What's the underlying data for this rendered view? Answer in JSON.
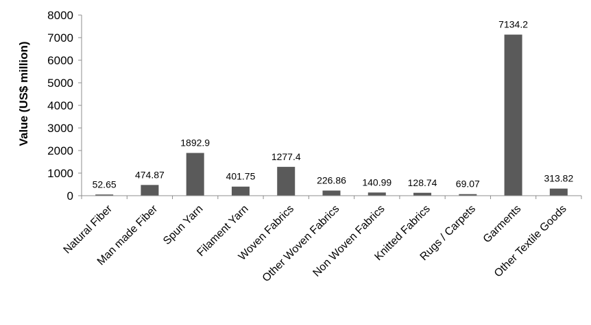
{
  "chart_data": {
    "type": "bar",
    "title": "",
    "xlabel": "",
    "ylabel": "Value (US$ million)",
    "ylim": [
      0,
      8000
    ],
    "yticks": [
      0,
      1000,
      2000,
      3000,
      4000,
      5000,
      6000,
      7000,
      8000
    ],
    "grid": false,
    "legend": "none",
    "bar_color": "#5a5a5a",
    "categories": [
      "Natural Fiber",
      "Man made Fiber",
      "Spun Yarn",
      "Filament Yarn",
      "Woven Fabrics",
      "Other Woven Fabrics",
      "Non Woven Fabrics",
      "Knitted Fabrics",
      "Rugs / Carpets",
      "Garments",
      "Other Textile Goods"
    ],
    "values": [
      52.65,
      474.87,
      1892.9,
      401.75,
      1277.4,
      226.86,
      140.99,
      128.74,
      69.07,
      7134.2,
      313.82
    ],
    "data_labels": [
      "52.65",
      "474.87",
      "1892.9",
      "401.75",
      "1277.4",
      "226.86",
      "140.99",
      "128.74",
      "69.07",
      "7134.2",
      "313.82"
    ]
  }
}
